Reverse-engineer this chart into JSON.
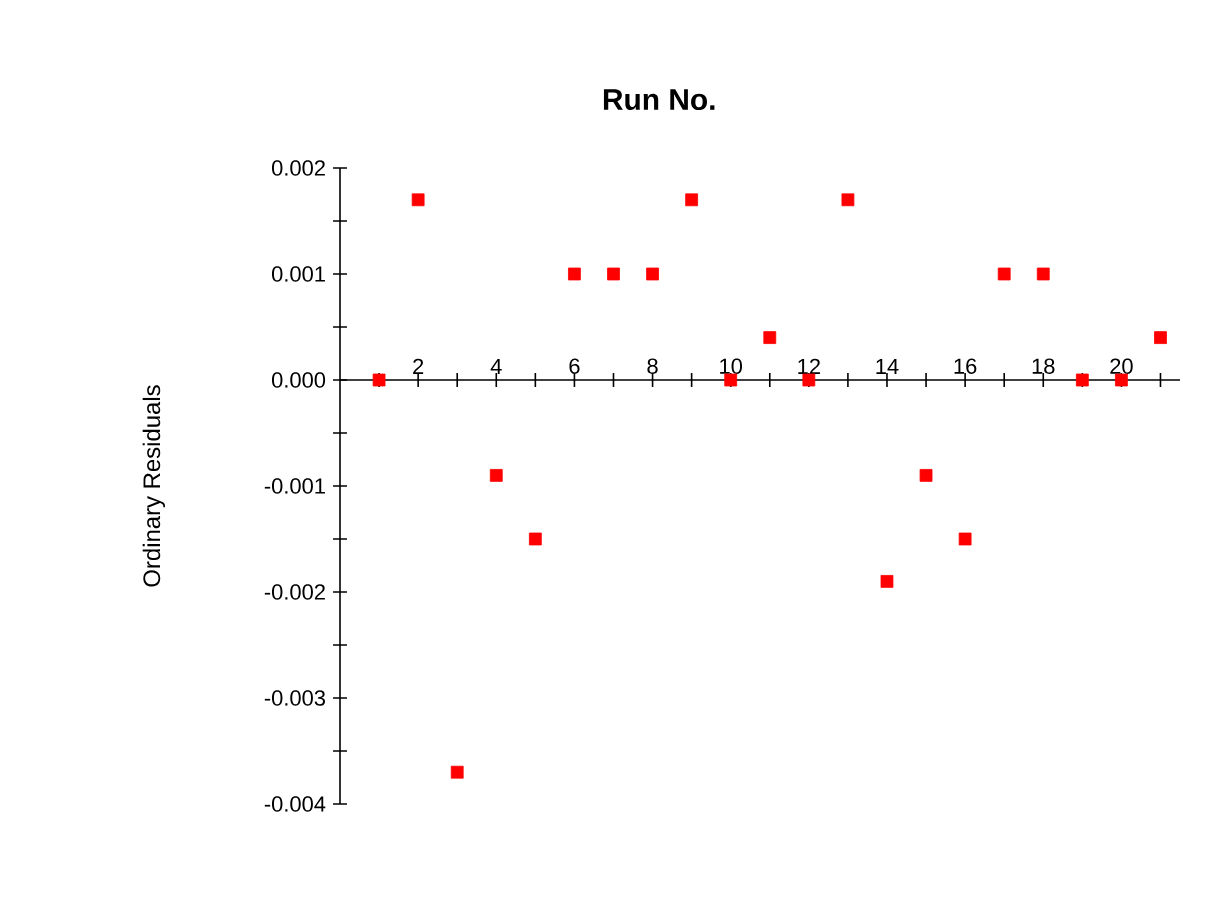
{
  "chart_data": {
    "type": "scatter",
    "xlabel": "Run No.",
    "ylabel": "Ordinary Residuals",
    "x": [
      1,
      2,
      3,
      4,
      5,
      6,
      7,
      8,
      9,
      10,
      11,
      12,
      13,
      14,
      15,
      16,
      17,
      18,
      19,
      20,
      21
    ],
    "series": [
      {
        "color": "#ff0000",
        "values": [
          0,
          0.0017,
          -0.0037,
          -0.0009,
          -0.0015,
          0.001,
          0.001,
          0.001,
          0.0017,
          0,
          0.0004,
          0,
          0.0017,
          -0.0019,
          -0.0009,
          -0.0015,
          0.001,
          0.001,
          0,
          0,
          0.0004
        ]
      }
    ],
    "marker": "square",
    "xlim": [
      0,
      21.5
    ],
    "xticks": [
      {
        "value": 1,
        "label": null
      },
      2,
      {
        "value": 3,
        "label": null
      },
      4,
      {
        "value": 5,
        "label": null
      },
      6,
      {
        "value": 7,
        "label": null
      },
      8,
      {
        "value": 9,
        "label": null
      },
      10,
      {
        "value": 11,
        "label": null
      },
      12,
      {
        "value": 13,
        "label": null
      },
      14,
      {
        "value": 15,
        "label": null
      },
      16,
      {
        "value": 17,
        "label": null
      },
      18,
      {
        "value": 19,
        "label": null
      },
      20,
      {
        "value": 21,
        "label": null
      }
    ],
    "ylim": [
      -0.004,
      0.002
    ],
    "yticks": [
      {
        "value": 0.002,
        "label": "0.002"
      },
      {
        "value": 0.0015,
        "label": null
      },
      {
        "value": 0.001,
        "label": "0.001"
      },
      {
        "value": 0.0005,
        "label": null
      },
      {
        "value": 0,
        "label": "0.000"
      },
      {
        "value": -0.0005,
        "label": null
      },
      {
        "value": -0.001,
        "label": "-0.001"
      },
      {
        "value": -0.0015,
        "label": null
      },
      {
        "value": -0.002,
        "label": "-0.002"
      },
      {
        "value": -0.0025,
        "label": null
      },
      {
        "value": -0.003,
        "label": "-0.003"
      },
      {
        "value": -0.0035,
        "label": null
      },
      {
        "value": -0.004,
        "label": "-0.004"
      }
    ],
    "grid": false
  }
}
